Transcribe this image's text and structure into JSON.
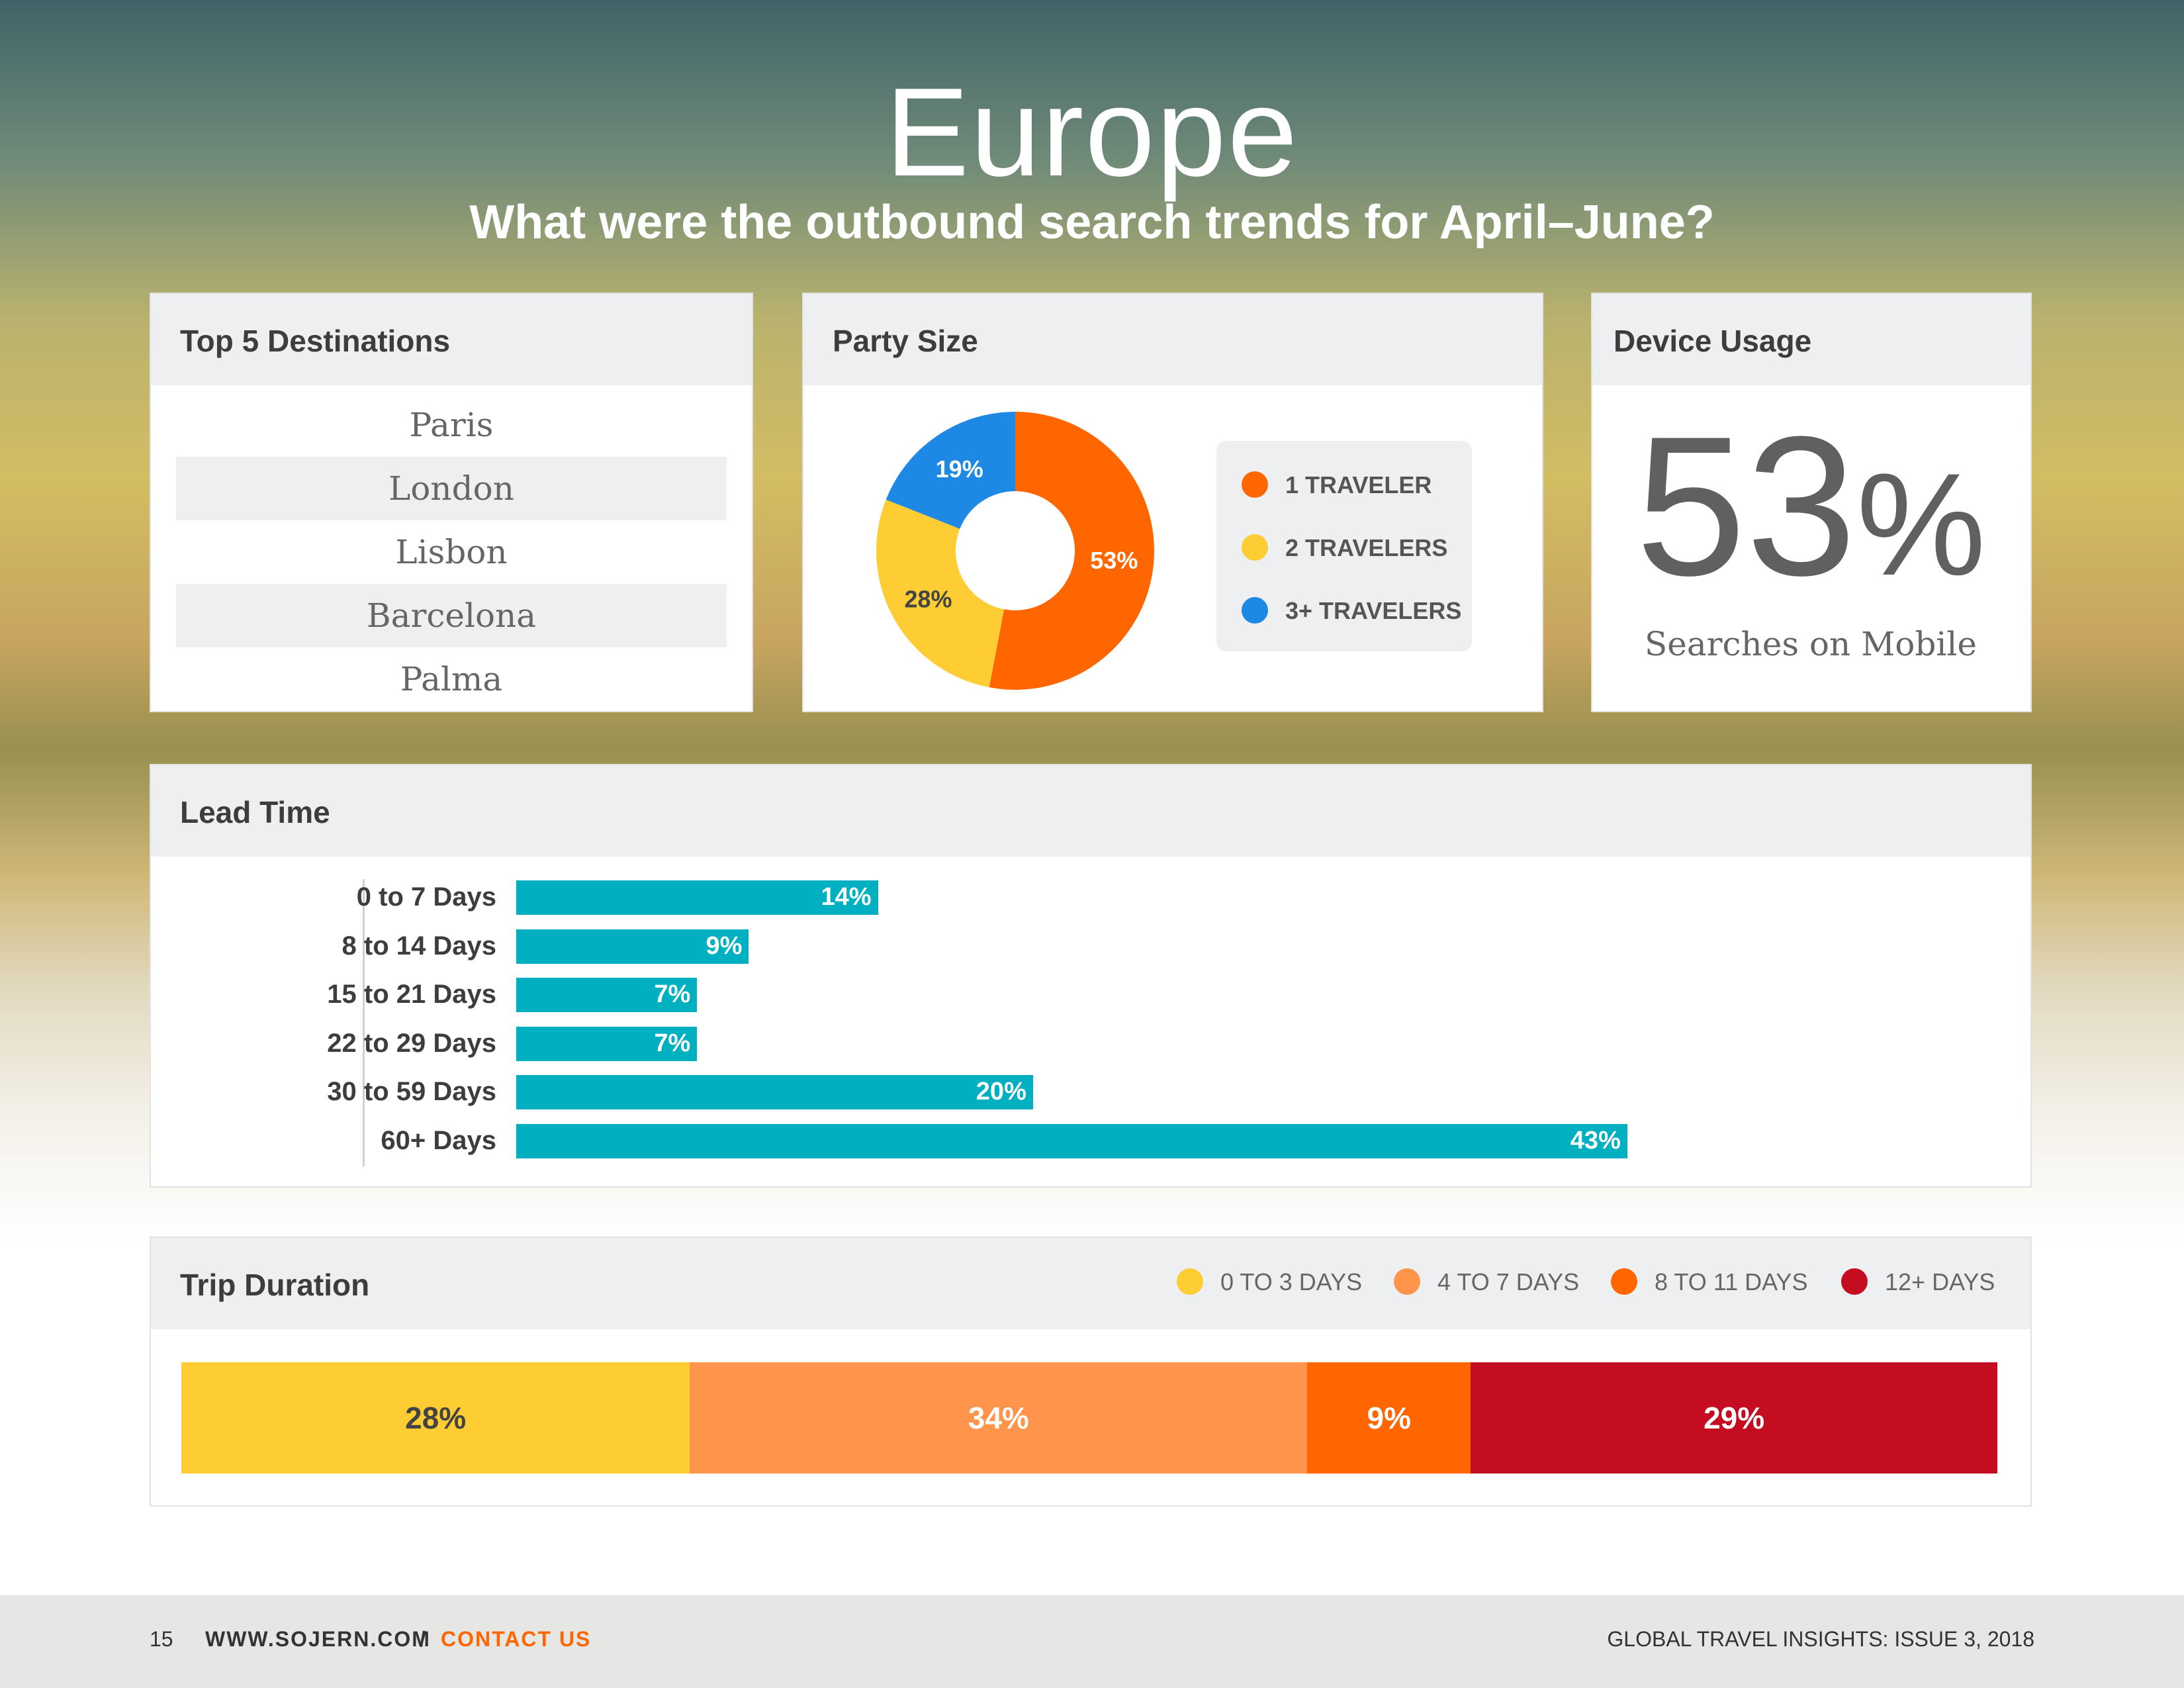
{
  "header": {
    "title": "Europe",
    "subtitle": "What were the outbound search trends for April–June?"
  },
  "destinations": {
    "title": "Top 5 Destinations",
    "items": [
      "Paris",
      "London",
      "Lisbon",
      "Barcelona",
      "Palma"
    ]
  },
  "party_size": {
    "title": "Party Size"
  },
  "device_usage": {
    "title": "Device Usage",
    "value": "53",
    "unit": "%",
    "caption": "Searches on Mobile"
  },
  "lead_time": {
    "title": "Lead Time"
  },
  "trip_duration": {
    "title": "Trip Duration"
  },
  "colors": {
    "teal": "#00b0c0",
    "orange": "#ff6600",
    "yellow": "#fecc33",
    "blue": "#1e88e5",
    "light_orange": "#ff944a",
    "red": "#c50d22"
  },
  "chart_data": [
    {
      "type": "pie",
      "title": "Party Size",
      "donut": true,
      "categories": [
        "1 TRAVELER",
        "2 TRAVELERS",
        "3+ TRAVELERS"
      ],
      "values": [
        53,
        28,
        19
      ],
      "labels": [
        "53%",
        "28%",
        "19%"
      ],
      "colors": [
        "#ff6600",
        "#fecc33",
        "#1e88e5"
      ],
      "legend": "right"
    },
    {
      "type": "bar",
      "orientation": "horizontal",
      "title": "Lead Time",
      "categories": [
        "0 to 7 Days",
        "8 to 14 Days",
        "15 to 21 Days",
        "22 to 29 Days",
        "30 to 59 Days",
        "60+ Days"
      ],
      "values": [
        14,
        9,
        7,
        7,
        20,
        43
      ],
      "labels": [
        "14%",
        "9%",
        "7%",
        "7%",
        "20%",
        "43%"
      ],
      "color": "#00b0c0",
      "xlim": [
        0,
        46
      ]
    },
    {
      "type": "bar",
      "orientation": "stacked-horizontal",
      "title": "Trip Duration",
      "categories": [
        "0 TO 3 DAYS",
        "4 TO 7 DAYS",
        "8 TO 11 DAYS",
        "12+ DAYS"
      ],
      "values": [
        28,
        34,
        9,
        29
      ],
      "labels": [
        "28%",
        "34%",
        "9%",
        "29%"
      ],
      "colors": [
        "#fecc33",
        "#ff944a",
        "#ff6600",
        "#c50d22"
      ],
      "legend": "top-right"
    }
  ],
  "footer": {
    "page": "15",
    "website": "WWW.SOJERN.COM",
    "separator": "/",
    "contact": "CONTACT US",
    "publication": "GLOBAL TRAVEL INSIGHTS: ISSUE 3, 2018"
  }
}
